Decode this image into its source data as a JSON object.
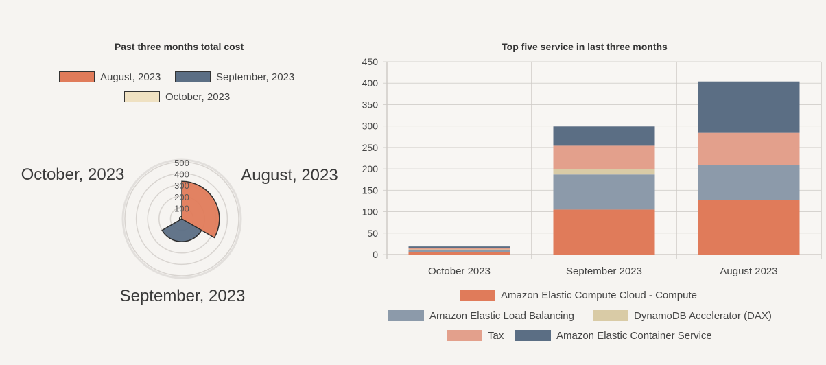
{
  "chart_data": [
    {
      "type": "polar-area",
      "title": "Past three months total cost",
      "categories": [
        "August, 2023",
        "September, 2023",
        "October, 2023"
      ],
      "values": [
        330,
        200,
        20
      ],
      "colors": [
        "#e07b5a",
        "#5b6e84",
        "#efe1c2"
      ],
      "rlim": [
        0,
        500
      ],
      "r_ticks": [
        "0",
        "100",
        "200",
        "300",
        "400",
        "500"
      ],
      "legend_placement": "top"
    },
    {
      "type": "bar",
      "stacked": true,
      "title": "Top five service in last three months",
      "categories": [
        "October 2023",
        "September 2023",
        "August 2023"
      ],
      "series": [
        {
          "name": "Amazon Elastic Compute Cloud - Compute",
          "color": "#e07b5a",
          "values": [
            5,
            105,
            127
          ]
        },
        {
          "name": "Amazon Elastic Load Balancing",
          "color": "#8c9aaa",
          "values": [
            5,
            82,
            82
          ]
        },
        {
          "name": "DynamoDB Accelerator (DAX)",
          "color": "#d9cba6",
          "values": [
            2,
            12,
            0
          ]
        },
        {
          "name": "Tax",
          "color": "#e3a08c",
          "values": [
            3,
            55,
            75
          ]
        },
        {
          "name": "Amazon Elastic Container Service",
          "color": "#5b6e84",
          "values": [
            4,
            45,
            120
          ]
        }
      ],
      "ylim": [
        0,
        450
      ],
      "y_ticks": [
        "0",
        "50",
        "100",
        "150",
        "200",
        "250",
        "300",
        "350",
        "400",
        "450"
      ],
      "grid": true,
      "legend_placement": "bottom"
    }
  ]
}
